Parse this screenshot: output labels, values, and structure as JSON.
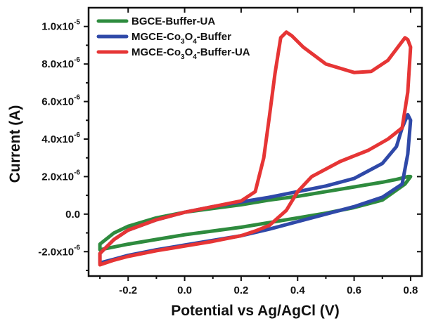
{
  "chart_data": {
    "type": "line",
    "xlabel": "Potential vs Ag/AgCl (V)",
    "ylabel": "Current (A)",
    "xlim": [
      -0.34,
      0.84
    ],
    "ylim": [
      -3.3e-06,
      1.1e-05
    ],
    "xticks": [
      {
        "value": -0.2,
        "label": "-0.2"
      },
      {
        "value": 0.0,
        "label": "0.0"
      },
      {
        "value": 0.2,
        "label": "0.2"
      },
      {
        "value": 0.4,
        "label": "0.4"
      },
      {
        "value": 0.6,
        "label": "0.6"
      },
      {
        "value": 0.8,
        "label": "0.8"
      }
    ],
    "yticks": [
      {
        "value": -2e-06,
        "mantissa": "-2.0x10",
        "exp": "-6"
      },
      {
        "value": 0,
        "mantissa": "0.0",
        "exp": ""
      },
      {
        "value": 2e-06,
        "mantissa": "2.0x10",
        "exp": "-6"
      },
      {
        "value": 4e-06,
        "mantissa": "4.0x10",
        "exp": "-6"
      },
      {
        "value": 6e-06,
        "mantissa": "6.0x10",
        "exp": "-6"
      },
      {
        "value": 8e-06,
        "mantissa": "8.0x10",
        "exp": "-6"
      },
      {
        "value": 1e-05,
        "mantissa": "1.0x10",
        "exp": "-5"
      }
    ],
    "legend_position": "top-left",
    "series": [
      {
        "name": "BGCE-Buffer-UA",
        "legend_parts": [
          [
            "BGCE-Buffer-UA",
            ""
          ]
        ],
        "color": "#2e8b3e",
        "x": [
          -0.3,
          -0.25,
          -0.2,
          -0.1,
          0.0,
          0.1,
          0.2,
          0.3,
          0.4,
          0.5,
          0.6,
          0.7,
          0.75,
          0.79,
          0.8,
          0.78,
          0.7,
          0.6,
          0.5,
          0.4,
          0.3,
          0.2,
          0.1,
          0.0,
          -0.1,
          -0.2,
          -0.25,
          -0.3
        ],
        "y": [
          -1.6e-06,
          -1e-06,
          -6.5e-07,
          -2e-07,
          1e-07,
          3e-07,
          5e-07,
          7.5e-07,
          9.5e-07,
          1.2e-06,
          1.45e-06,
          1.7e-06,
          1.85e-06,
          2e-06,
          2e-06,
          1.6e-06,
          7.5e-07,
          3.5e-07,
          5e-08,
          -2e-07,
          -4.5e-07,
          -7e-07,
          -9e-07,
          -1.1e-06,
          -1.35e-06,
          -1.6e-06,
          -1.75e-06,
          -1.9e-06
        ]
      },
      {
        "name": "MGCE-Co3O4-Buffer",
        "legend_parts": [
          [
            "MGCE-Co",
            ""
          ],
          [
            "3",
            "sub"
          ],
          [
            "O",
            ""
          ],
          [
            "4",
            "sub"
          ],
          [
            "-Buffer",
            ""
          ]
        ],
        "color": "#2f49a8",
        "x": [
          -0.3,
          -0.25,
          -0.2,
          -0.1,
          0.0,
          0.1,
          0.2,
          0.3,
          0.4,
          0.5,
          0.6,
          0.7,
          0.75,
          0.77,
          0.79,
          0.8,
          0.79,
          0.77,
          0.7,
          0.6,
          0.5,
          0.4,
          0.3,
          0.2,
          0.1,
          0.0,
          -0.1,
          -0.2,
          -0.25,
          -0.3
        ],
        "y": [
          -2.1e-06,
          -1.35e-06,
          -8.5e-07,
          -3e-07,
          1e-07,
          4e-07,
          6.5e-07,
          9e-07,
          1.2e-06,
          1.5e-06,
          1.9e-06,
          2.7e-06,
          3.6e-06,
          4.6e-06,
          5.3e-06,
          5e-06,
          3.2e-06,
          1.6e-06,
          9e-07,
          4e-07,
          0.0,
          -4e-07,
          -8e-07,
          -1.15e-06,
          -1.4e-06,
          -1.65e-06,
          -1.9e-06,
          -2.2e-06,
          -2.4e-06,
          -2.6e-06
        ]
      },
      {
        "name": "MGCE-Co3O4-Buffer-UA",
        "legend_parts": [
          [
            "MGCE-Co",
            ""
          ],
          [
            "3",
            "sub"
          ],
          [
            "O",
            ""
          ],
          [
            "4",
            "sub"
          ],
          [
            "-Buffer-UA",
            ""
          ]
        ],
        "color": "#e63535",
        "x": [
          -0.3,
          -0.25,
          -0.2,
          -0.1,
          0.0,
          0.1,
          0.2,
          0.25,
          0.28,
          0.3,
          0.32,
          0.34,
          0.36,
          0.38,
          0.42,
          0.5,
          0.6,
          0.66,
          0.72,
          0.76,
          0.78,
          0.79,
          0.8,
          0.79,
          0.77,
          0.72,
          0.65,
          0.55,
          0.45,
          0.4,
          0.36,
          0.3,
          0.25,
          0.2,
          0.1,
          0.0,
          -0.1,
          -0.2,
          -0.25,
          -0.3
        ],
        "y": [
          -2.1e-06,
          -1.35e-06,
          -8.5e-07,
          -3e-07,
          1e-07,
          4e-07,
          7e-07,
          1.2e-06,
          3e-06,
          5.2e-06,
          7.5e-06,
          9.4e-06,
          9.7e-06,
          9.5e-06,
          8.9e-06,
          8e-06,
          7.55e-06,
          7.6e-06,
          8.2e-06,
          9e-06,
          9.4e-06,
          9.3e-06,
          8.9e-06,
          6.5e-06,
          4.6e-06,
          4e-06,
          3.4e-06,
          2.8e-06,
          2e-06,
          1.2e-06,
          2e-07,
          -6e-07,
          -9e-07,
          -1.15e-06,
          -1.45e-06,
          -1.7e-06,
          -1.95e-06,
          -2.25e-06,
          -2.45e-06,
          -2.7e-06
        ]
      }
    ]
  }
}
